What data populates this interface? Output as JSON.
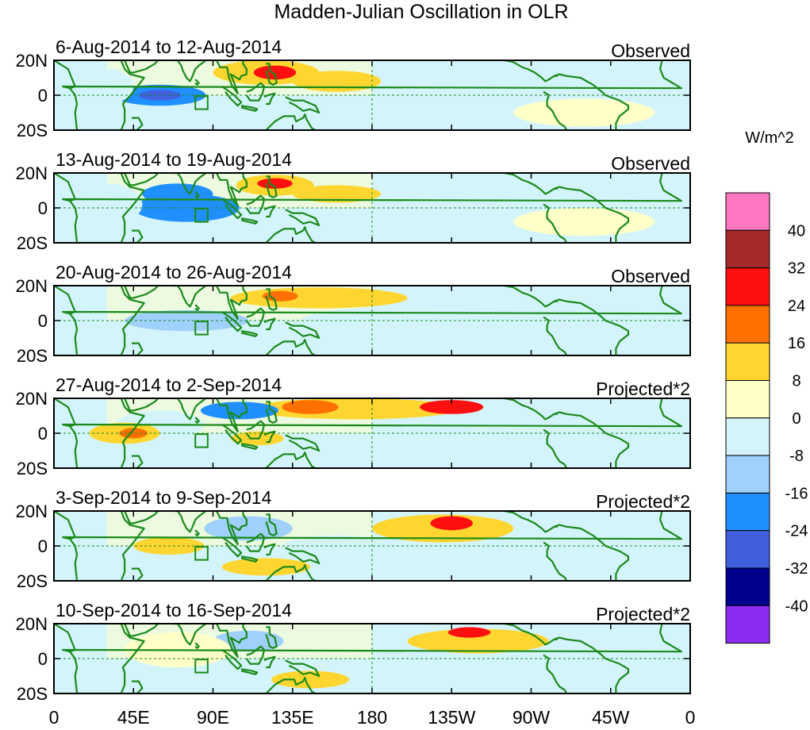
{
  "chart_data": {
    "type": "heatmap",
    "title": "Madden-Julian Oscillation in OLR",
    "units_label": "W/m^2",
    "x_ticks": [
      "0",
      "45E",
      "90E",
      "135E",
      "180",
      "135W",
      "90W",
      "45W",
      "0"
    ],
    "y_ticks": [
      "20N",
      "0",
      "20S"
    ],
    "x_range_lon": [
      0,
      360
    ],
    "y_range_lat": [
      -20,
      20
    ],
    "colorbar": {
      "labels": [
        "40",
        "32",
        "24",
        "16",
        "8",
        "0",
        "-8",
        "-16",
        "-24",
        "-32",
        "-40"
      ],
      "colors_top_to_bottom": [
        "#ff77c0",
        "#a52a2a",
        "#ff1010",
        "#ff7000",
        "#ffd630",
        "#ffffc8",
        "#d4f4fc",
        "#a0d0fc",
        "#2090ff",
        "#4060e0",
        "#00008c",
        "#8c2cf0"
      ]
    },
    "panels": [
      {
        "date_range": "6-Aug-2014 to 12-Aug-2014",
        "status": "Observed",
        "anomalies": [
          {
            "lon": 60,
            "lat": 0,
            "rlon": 26,
            "rlat": 6,
            "v": -18
          },
          {
            "lon": 60,
            "lat": 0,
            "rlon": 12,
            "rlat": 3,
            "v": -30
          },
          {
            "lon": 30,
            "lat": 5,
            "rlon": 15,
            "rlat": 10,
            "v": -6
          },
          {
            "lon": 120,
            "lat": 13,
            "rlon": 30,
            "rlat": 7,
            "v": 14
          },
          {
            "lon": 125,
            "lat": 13,
            "rlon": 12,
            "rlat": 4,
            "v": 28
          },
          {
            "lon": 160,
            "lat": 8,
            "rlon": 25,
            "rlat": 6,
            "v": 9
          },
          {
            "lon": 210,
            "lat": -15,
            "rlon": 35,
            "rlat": 4,
            "v": -7
          },
          {
            "lon": 300,
            "lat": -10,
            "rlon": 40,
            "rlat": 8,
            "v": 3
          }
        ]
      },
      {
        "date_range": "13-Aug-2014 to 19-Aug-2014",
        "status": "Observed",
        "anomalies": [
          {
            "lon": 75,
            "lat": 0,
            "rlon": 30,
            "rlat": 8,
            "v": -18
          },
          {
            "lon": 70,
            "lat": 8,
            "rlon": 20,
            "rlat": 6,
            "v": -22
          },
          {
            "lon": 30,
            "lat": 2,
            "rlon": 20,
            "rlat": 12,
            "v": -8
          },
          {
            "lon": 125,
            "lat": 13,
            "rlon": 22,
            "rlat": 6,
            "v": 14
          },
          {
            "lon": 125,
            "lat": 14,
            "rlon": 10,
            "rlat": 3,
            "v": 26
          },
          {
            "lon": 160,
            "lat": 8,
            "rlon": 25,
            "rlat": 5,
            "v": 8
          },
          {
            "lon": 120,
            "lat": -8,
            "rlon": 25,
            "rlat": 5,
            "v": -7
          },
          {
            "lon": 300,
            "lat": -8,
            "rlon": 40,
            "rlat": 8,
            "v": 3
          }
        ]
      },
      {
        "date_range": "20-Aug-2014 to 26-Aug-2014",
        "status": "Observed",
        "anomalies": [
          {
            "lon": 150,
            "lat": 13,
            "rlon": 50,
            "rlat": 6,
            "v": 10
          },
          {
            "lon": 128,
            "lat": 14,
            "rlon": 10,
            "rlat": 3,
            "v": 18
          },
          {
            "lon": 75,
            "lat": 0,
            "rlon": 35,
            "rlat": 6,
            "v": -10
          },
          {
            "lon": 200,
            "lat": 0,
            "rlon": 60,
            "rlat": 8,
            "v": -6
          },
          {
            "lon": 300,
            "lat": 5,
            "rlon": 40,
            "rlat": 10,
            "v": -5
          }
        ]
      },
      {
        "date_range": "27-Aug-2014 to 2-Sep-2014",
        "status": "Projected*2",
        "anomalies": [
          {
            "lon": 170,
            "lat": 14,
            "rlon": 60,
            "rlat": 6,
            "v": 12
          },
          {
            "lon": 225,
            "lat": 15,
            "rlon": 18,
            "rlat": 4,
            "v": 28
          },
          {
            "lon": 145,
            "lat": 15,
            "rlon": 16,
            "rlat": 4,
            "v": 18
          },
          {
            "lon": 105,
            "lat": 13,
            "rlon": 22,
            "rlat": 5,
            "v": -22
          },
          {
            "lon": 60,
            "lat": 5,
            "rlon": 25,
            "rlat": 8,
            "v": -8
          },
          {
            "lon": 40,
            "lat": 0,
            "rlon": 20,
            "rlat": 6,
            "v": 12
          },
          {
            "lon": 45,
            "lat": 0,
            "rlon": 8,
            "rlat": 3,
            "v": 20
          },
          {
            "lon": 115,
            "lat": -3,
            "rlon": 15,
            "rlat": 4,
            "v": 10
          },
          {
            "lon": 200,
            "lat": -10,
            "rlon": 40,
            "rlat": 6,
            "v": -6
          }
        ]
      },
      {
        "date_range": "3-Sep-2014 to 9-Sep-2014",
        "status": "Projected*2",
        "anomalies": [
          {
            "lon": 220,
            "lat": 10,
            "rlon": 40,
            "rlat": 8,
            "v": 12
          },
          {
            "lon": 225,
            "lat": 13,
            "rlon": 12,
            "rlat": 4,
            "v": 28
          },
          {
            "lon": 110,
            "lat": 10,
            "rlon": 25,
            "rlat": 7,
            "v": -10
          },
          {
            "lon": 120,
            "lat": -12,
            "rlon": 25,
            "rlat": 5,
            "v": 12
          },
          {
            "lon": 65,
            "lat": 0,
            "rlon": 20,
            "rlat": 5,
            "v": 10
          },
          {
            "lon": 320,
            "lat": 0,
            "rlon": 40,
            "rlat": 10,
            "v": -6
          },
          {
            "lon": 160,
            "lat": 0,
            "rlon": 30,
            "rlat": 6,
            "v": -5
          }
        ]
      },
      {
        "date_range": "10-Sep-2014 to 16-Sep-2014",
        "status": "Projected*2",
        "anomalies": [
          {
            "lon": 240,
            "lat": 10,
            "rlon": 40,
            "rlat": 7,
            "v": 12
          },
          {
            "lon": 235,
            "lat": 15,
            "rlon": 12,
            "rlat": 3,
            "v": 26
          },
          {
            "lon": 110,
            "lat": 10,
            "rlon": 20,
            "rlat": 6,
            "v": -14
          },
          {
            "lon": 145,
            "lat": -12,
            "rlon": 22,
            "rlat": 5,
            "v": 12
          },
          {
            "lon": 70,
            "lat": 5,
            "rlon": 30,
            "rlat": 10,
            "v": 5
          },
          {
            "lon": 320,
            "lat": 0,
            "rlon": 40,
            "rlat": 10,
            "v": -5
          }
        ]
      }
    ]
  }
}
